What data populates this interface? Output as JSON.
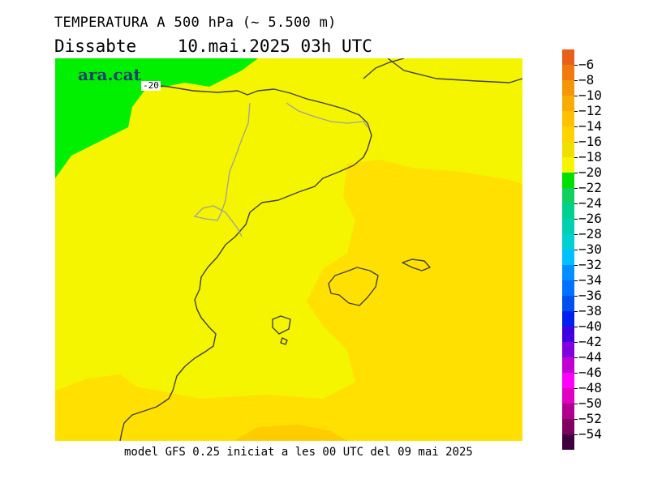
{
  "header": {
    "title": "TEMPERATURA A 500 hPa (~ 5.500 m)",
    "day": "Dissabte",
    "datetime": "10.mai.2025 03h UTC"
  },
  "footer": {
    "model_note": "model GFS 0.25 iniciat a les 00 UTC del 09 mai 2025"
  },
  "map": {
    "logo_text": "ara.cat",
    "contour_label": "-20",
    "field_colors": {
      "minus20_band": "#00f000",
      "minus18_band": "#f5f500",
      "minus16_band": "#ffe000",
      "minus14_band": "#ffcc00"
    }
  },
  "colorbar": {
    "labels": [
      "-6",
      "-8",
      "-10",
      "-12",
      "-14",
      "-16",
      "-18",
      "-20",
      "-22",
      "-24",
      "-26",
      "-28",
      "-30",
      "-32",
      "-34",
      "-36",
      "-38",
      "-40",
      "-42",
      "-44",
      "-46",
      "-48",
      "-50",
      "-52",
      "-54"
    ],
    "colors": [
      "#e8601a",
      "#f07a10",
      "#f5960a",
      "#f8ac05",
      "#ffc000",
      "#ffd200",
      "#f0e000",
      "#f5f500",
      "#00e000",
      "#10d060",
      "#00d090",
      "#00d0b0",
      "#00d0d0",
      "#00c0ff",
      "#0090ff",
      "#0070ff",
      "#0050f0",
      "#0020f0",
      "#4000e0",
      "#8000e0",
      "#c000d0",
      "#ff00ff",
      "#e000c0",
      "#b00090",
      "#800060",
      "#400040"
    ]
  }
}
